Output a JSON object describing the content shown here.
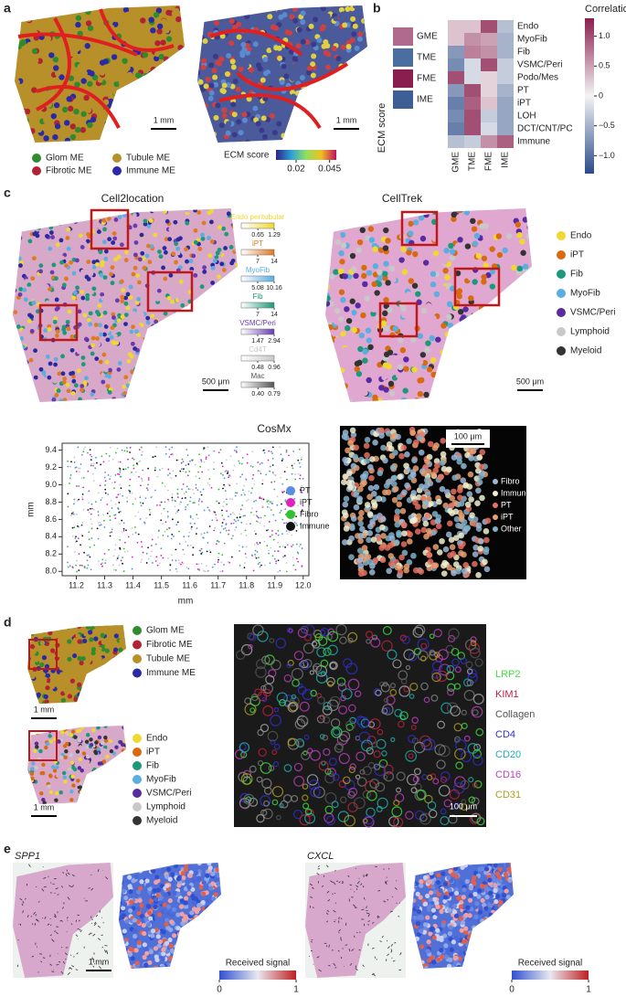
{
  "panels": {
    "a": {
      "label": "a",
      "scale_bars": [
        "1 mm",
        "1 mm"
      ],
      "legend": [
        {
          "name": "Glom ME",
          "color": "#2e8b2e"
        },
        {
          "name": "Tubule ME",
          "color": "#b8902a"
        },
        {
          "name": "Fibrotic ME",
          "color": "#b22234"
        },
        {
          "name": "Immune ME",
          "color": "#2a2aa8"
        }
      ],
      "colorbar": {
        "title": "ECM score",
        "lim": [
          0.005,
          0.05
        ],
        "ticks": [
          0.02,
          0.045
        ]
      }
    },
    "b": {
      "label": "b",
      "row_colors": [
        {
          "name": "GME",
          "color": "#b06a8e"
        },
        {
          "name": "TME",
          "color": "#4a6ea0"
        },
        {
          "name": "FME",
          "color": "#8a1e4e"
        },
        {
          "name": "IME",
          "color": "#3d5f95"
        }
      ],
      "row_axis_label": "ECM score",
      "heatmap": {
        "type": "heatmap",
        "rows": [
          "Endo",
          "MyoFib",
          "Fib",
          "VSMC/Peri",
          "Podo/Mes",
          "PT",
          "iPT",
          "LOH",
          "DCT/CNT/PC",
          "Immune"
        ],
        "columns": [
          "GME",
          "TME",
          "FME",
          "IME"
        ],
        "values": [
          [
            0.3,
            0.3,
            1.0,
            -0.4
          ],
          [
            0.3,
            0.6,
            0.5,
            -0.5
          ],
          [
            -0.7,
            0.7,
            0.6,
            -0.5
          ],
          [
            -0.8,
            -0.2,
            1.0,
            -0.3
          ],
          [
            1.0,
            -0.2,
            0.2,
            -0.3
          ],
          [
            -0.7,
            1.0,
            0.2,
            -0.5
          ],
          [
            -0.9,
            0.9,
            0.3,
            -0.6
          ],
          [
            -0.8,
            1.0,
            -0.3,
            -0.6
          ],
          [
            -0.9,
            1.0,
            -0.2,
            -0.6
          ],
          [
            -0.4,
            -0.3,
            0.6,
            0.9
          ]
        ],
        "colorbar_title": "Correlation",
        "clim": [
          -1.3,
          1.3
        ],
        "ticks": [
          {
            "value": 1,
            "label": "1.0"
          },
          0.5,
          0,
          {
            "value": -0.5,
            "label": "−0.5"
          },
          {
            "value": -1,
            "label": "−1.0"
          }
        ]
      }
    },
    "c": {
      "label": "c",
      "titles": [
        "Cell2location",
        "CellTrek"
      ],
      "scale_bars": [
        "500 μm",
        "500 μm"
      ],
      "mini_colorbars": [
        {
          "name": "Endo peritubular",
          "color": "#f0d830",
          "lim": [
            0,
            1.29
          ],
          "ticks": [
            0.65,
            1.29
          ]
        },
        {
          "name": "iPT",
          "color": "#e07a20",
          "lim": [
            0,
            14
          ],
          "ticks": [
            7,
            14
          ]
        },
        {
          "name": "MyoFib",
          "color": "#5aaee0",
          "lim": [
            0,
            10.16
          ],
          "ticks": [
            5.08,
            10.16
          ]
        },
        {
          "name": "Fib",
          "color": "#1a9a7a",
          "lim": [
            0,
            14
          ],
          "ticks": [
            7,
            14
          ]
        },
        {
          "name": "VSMC/Peri",
          "color": "#6a3ab0",
          "lim": [
            0,
            2.94
          ],
          "ticks": [
            1.47,
            2.94
          ]
        },
        {
          "name": "Cd4T",
          "color": "#c8c8c8",
          "lim": [
            0,
            0.96
          ],
          "ticks": [
            0.48,
            0.96
          ]
        },
        {
          "name": "Mac",
          "color": "#555555",
          "lim": [
            0,
            0.79
          ],
          "ticks": [
            {
              "value": 0.4,
              "label": "0.40"
            },
            0.79
          ]
        }
      ],
      "legend": [
        {
          "name": "Endo",
          "color": "#f0d830"
        },
        {
          "name": "iPT",
          "color": "#d86a10"
        },
        {
          "name": "Fib",
          "color": "#1a9a7a"
        },
        {
          "name": "MyoFib",
          "color": "#5aaee0"
        },
        {
          "name": "VSMC/Peri",
          "color": "#5a2aa0"
        },
        {
          "name": "Lymphoid",
          "color": "#c8c8c8"
        },
        {
          "name": "Myeloid",
          "color": "#333333"
        }
      ],
      "cosmx": {
        "type": "scatter",
        "title": "CosMx",
        "xlabel": "mm",
        "ylabel": "mm",
        "xlim": [
          11.15,
          12.02
        ],
        "ylim": [
          7.95,
          9.48
        ],
        "xticks": [
          11.2,
          11.3,
          11.4,
          11.5,
          11.6,
          11.7,
          11.8,
          11.9,
          {
            "value": 12,
            "label": "12.0"
          }
        ],
        "yticks": [
          {
            "value": 8,
            "label": "8.0"
          },
          8.2,
          8.4,
          8.6,
          8.8,
          {
            "value": 9,
            "label": "9.0"
          },
          9.2,
          9.4
        ],
        "legend": [
          {
            "name": "PT",
            "color": "#5a8ee0"
          },
          {
            "name": "iPT",
            "color": "#e020c0"
          },
          {
            "name": "Fibro",
            "color": "#30c030"
          },
          {
            "name": "Immune",
            "color": "#111111"
          }
        ]
      },
      "image_legend": [
        {
          "name": "Fibro",
          "color": "#9ab8d8"
        },
        {
          "name": "Immune",
          "color": "#f0f0d0"
        },
        {
          "name": "PT",
          "color": "#e87060"
        },
        {
          "name": "iPT",
          "color": "#e8a070"
        },
        {
          "name": "Other",
          "color": "#80b0c8"
        }
      ],
      "image_scale_bar": "100 μm"
    },
    "d": {
      "label": "d",
      "scale_bars": [
        "1 mm",
        "1 mm",
        "100 μm"
      ],
      "me_legend": [
        {
          "name": "Glom ME",
          "color": "#2e8b2e"
        },
        {
          "name": "Fibrotic ME",
          "color": "#b22234"
        },
        {
          "name": "Tubule ME",
          "color": "#b8902a"
        },
        {
          "name": "Immune ME",
          "color": "#2a2aa8"
        }
      ],
      "cell_legend": [
        {
          "name": "Endo",
          "color": "#f0d830"
        },
        {
          "name": "iPT",
          "color": "#d86a10"
        },
        {
          "name": "Fib",
          "color": "#1a9a7a"
        },
        {
          "name": "MyoFib",
          "color": "#5aaee0"
        },
        {
          "name": "VSMC/Peri",
          "color": "#5a2aa0"
        },
        {
          "name": "Lymphoid",
          "color": "#c8c8c8"
        },
        {
          "name": "Myeloid",
          "color": "#333333"
        }
      ],
      "markers": [
        {
          "name": "LRP2",
          "color": "#40e040"
        },
        {
          "name": "KIM1",
          "color": "#c02040"
        },
        {
          "name": "Collagen",
          "color": "#555555"
        },
        {
          "name": "CD4",
          "color": "#3030d0"
        },
        {
          "name": "CD20",
          "color": "#20b0b0"
        },
        {
          "name": "CD16",
          "color": "#c040c0"
        },
        {
          "name": "CD31",
          "color": "#b0a020"
        }
      ]
    },
    "e": {
      "label": "e",
      "genes": [
        {
          "gene": "SPP1",
          "scale_bar": "1 mm",
          "colorbar": {
            "title": "Received signal",
            "ticks": [
              0,
              1
            ]
          }
        },
        {
          "gene": "CXCL",
          "colorbar": {
            "title": "Received signal",
            "ticks": [
              0,
              1
            ]
          }
        }
      ]
    }
  }
}
